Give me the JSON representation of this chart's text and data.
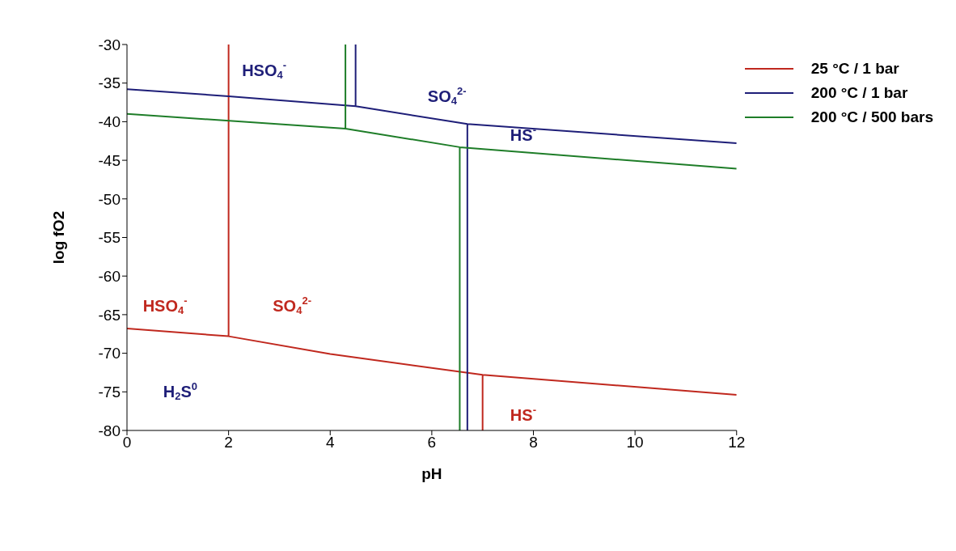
{
  "chart_data": {
    "type": "line",
    "xlabel": "pH",
    "ylabel": "log fO2",
    "xlim": [
      0,
      12
    ],
    "xticks": [
      0,
      2,
      4,
      6,
      8,
      10,
      12
    ],
    "ylim": [
      -80,
      -30
    ],
    "yticks": [
      -80,
      -75,
      -70,
      -65,
      -60,
      -55,
      -50,
      -45,
      -40,
      -35,
      -30
    ],
    "grid": false,
    "legend": "right",
    "marker": "none",
    "line_style": "solid",
    "series": [
      {
        "name": "25 °C / 1 bar",
        "color": "#c0281e",
        "x": [
          0,
          2,
          4,
          7,
          12,
          null,
          2,
          2,
          null,
          7,
          7
        ],
        "values": [
          -66.8,
          -67.8,
          -70.1,
          -72.8,
          -75.4,
          null,
          -30,
          -67.8,
          null,
          -72.8,
          -80
        ]
      },
      {
        "name": "200 °C / 1 bar",
        "color": "#1e1e78",
        "x": [
          0,
          2,
          4.5,
          6.7,
          12,
          null,
          4.5,
          4.5,
          null,
          6.7,
          6.7
        ],
        "values": [
          -35.8,
          -36.7,
          -38,
          -40.3,
          -42.8,
          null,
          -30,
          -38,
          null,
          -40.3,
          -80
        ]
      },
      {
        "name": "200 °C / 500 bars",
        "color": "#1e7d28",
        "x": [
          0,
          4.3,
          6.55,
          12,
          null,
          4.3,
          4.3,
          null,
          6.55,
          6.55
        ],
        "values": [
          -39,
          -40.9,
          -43.3,
          -46.1,
          null,
          -30,
          -40.9,
          null,
          -43.3,
          -80
        ]
      }
    ],
    "annotations": [
      "HSO$_{4}$$^{-}$",
      "SO$_{4}$$^{2-}$",
      "HS$^{-}$",
      "HSO$_{4}$$^{-}$",
      "SO$_{4}$$^{2-}$",
      "H$_{2}$S$^{0}$",
      "HS$^{-}$"
    ]
  }
}
